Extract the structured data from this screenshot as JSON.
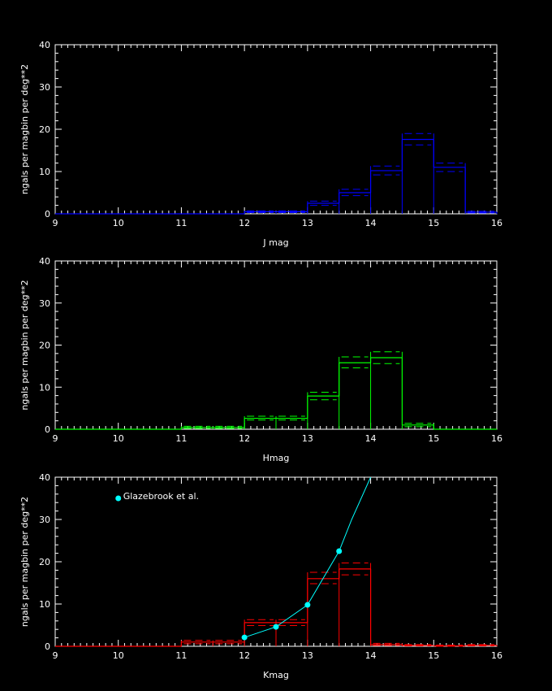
{
  "colors": {
    "background": "#000000",
    "axes": "#ffffff",
    "j_series": "#0000ff",
    "h_series": "#00ff00",
    "k_series": "#ff0000",
    "glazebrook": "#00ffff"
  },
  "chart_data": [
    {
      "type": "histogram",
      "xlabel": "J mag",
      "ylabel": "ngals per magbin per deg**2",
      "xlim": [
        9,
        16
      ],
      "ylim": [
        0,
        40
      ],
      "xticks": [
        9,
        10,
        11,
        12,
        13,
        14,
        15,
        16
      ],
      "yticks": [
        0,
        10,
        20,
        30,
        40
      ],
      "grid": false,
      "color": "#0000ff",
      "bin_width": 0.5,
      "bins": [
        {
          "x0": 9.0,
          "x1": 12.0,
          "value": 0.0,
          "lower": 0.0,
          "upper": 0.0
        },
        {
          "x0": 12.0,
          "x1": 12.5,
          "value": 0.5,
          "lower": 0.3,
          "upper": 0.7
        },
        {
          "x0": 12.5,
          "x1": 13.0,
          "value": 0.5,
          "lower": 0.3,
          "upper": 0.7
        },
        {
          "x0": 13.0,
          "x1": 13.5,
          "value": 2.5,
          "lower": 2.0,
          "upper": 3.0
        },
        {
          "x0": 13.5,
          "x1": 14.0,
          "value": 5.0,
          "lower": 4.3,
          "upper": 5.8
        },
        {
          "x0": 14.0,
          "x1": 14.5,
          "value": 10.2,
          "lower": 9.2,
          "upper": 11.3
        },
        {
          "x0": 14.5,
          "x1": 15.0,
          "value": 17.6,
          "lower": 16.3,
          "upper": 19.0
        },
        {
          "x0": 15.0,
          "x1": 15.5,
          "value": 11.0,
          "lower": 10.0,
          "upper": 12.0
        },
        {
          "x0": 15.5,
          "x1": 16.0,
          "value": 0.4,
          "lower": 0.2,
          "upper": 0.6
        }
      ]
    },
    {
      "type": "histogram",
      "xlabel": "Hmag",
      "ylabel": "ngals per magbin per deg**2",
      "xlim": [
        9,
        16
      ],
      "ylim": [
        0,
        40
      ],
      "xticks": [
        9,
        10,
        11,
        12,
        13,
        14,
        15,
        16
      ],
      "yticks": [
        0,
        10,
        20,
        30,
        40
      ],
      "grid": false,
      "color": "#00ff00",
      "bin_width": 0.5,
      "bins": [
        {
          "x0": 9.0,
          "x1": 11.0,
          "value": 0.0,
          "lower": 0.0,
          "upper": 0.0
        },
        {
          "x0": 11.0,
          "x1": 11.5,
          "value": 0.4,
          "lower": 0.2,
          "upper": 0.7
        },
        {
          "x0": 11.5,
          "x1": 12.0,
          "value": 0.4,
          "lower": 0.2,
          "upper": 0.7
        },
        {
          "x0": 12.0,
          "x1": 12.5,
          "value": 2.6,
          "lower": 2.2,
          "upper": 3.1
        },
        {
          "x0": 12.5,
          "x1": 13.0,
          "value": 2.6,
          "lower": 2.2,
          "upper": 3.1
        },
        {
          "x0": 13.0,
          "x1": 13.5,
          "value": 7.9,
          "lower": 7.0,
          "upper": 8.8
        },
        {
          "x0": 13.5,
          "x1": 14.0,
          "value": 15.8,
          "lower": 14.6,
          "upper": 17.2
        },
        {
          "x0": 14.0,
          "x1": 14.5,
          "value": 17.0,
          "lower": 15.6,
          "upper": 18.4
        },
        {
          "x0": 14.5,
          "x1": 15.0,
          "value": 1.0,
          "lower": 0.6,
          "upper": 1.4
        },
        {
          "x0": 15.0,
          "x1": 16.0,
          "value": 0.0,
          "lower": 0.0,
          "upper": 0.0
        }
      ]
    },
    {
      "type": "histogram",
      "xlabel": "Kmag",
      "ylabel": "ngals per magbin per deg**2",
      "xlim": [
        9,
        16
      ],
      "ylim": [
        0,
        40
      ],
      "xticks": [
        9,
        10,
        11,
        12,
        13,
        14,
        15,
        16
      ],
      "yticks": [
        0,
        10,
        20,
        30,
        40
      ],
      "grid": false,
      "color": "#ff0000",
      "bin_width": 0.5,
      "bins": [
        {
          "x0": 9.0,
          "x1": 11.0,
          "value": 0.0,
          "lower": 0.0,
          "upper": 0.0
        },
        {
          "x0": 11.0,
          "x1": 11.5,
          "value": 1.0,
          "lower": 0.6,
          "upper": 1.4
        },
        {
          "x0": 11.5,
          "x1": 12.0,
          "value": 1.0,
          "lower": 0.6,
          "upper": 1.4
        },
        {
          "x0": 12.0,
          "x1": 12.5,
          "value": 5.6,
          "lower": 4.9,
          "upper": 6.3
        },
        {
          "x0": 12.5,
          "x1": 13.0,
          "value": 5.6,
          "lower": 4.9,
          "upper": 6.3
        },
        {
          "x0": 13.0,
          "x1": 13.5,
          "value": 16.0,
          "lower": 14.8,
          "upper": 17.5
        },
        {
          "x0": 13.5,
          "x1": 14.0,
          "value": 18.3,
          "lower": 16.9,
          "upper": 19.7
        },
        {
          "x0": 14.0,
          "x1": 14.5,
          "value": 0.4,
          "lower": 0.2,
          "upper": 0.7
        },
        {
          "x0": 14.5,
          "x1": 15.0,
          "value": 0.2,
          "lower": 0.1,
          "upper": 0.4
        },
        {
          "x0": 15.0,
          "x1": 15.5,
          "value": 0.1,
          "lower": 0.0,
          "upper": 0.3
        },
        {
          "x0": 15.5,
          "x1": 16.0,
          "value": 0.2,
          "lower": 0.1,
          "upper": 0.4
        }
      ],
      "overlay": {
        "type": "line",
        "name": "Glazebrook et al.",
        "color": "#00ffff",
        "legend_marker": {
          "x": 10.0,
          "y": 35.0
        },
        "x": [
          12.0,
          12.5,
          13.0,
          13.5,
          13.7,
          14.0
        ],
        "y": [
          2.1,
          4.6,
          9.8,
          22.5,
          30.0,
          40.0
        ],
        "markers": [
          true,
          true,
          true,
          true,
          false,
          false
        ]
      }
    }
  ]
}
